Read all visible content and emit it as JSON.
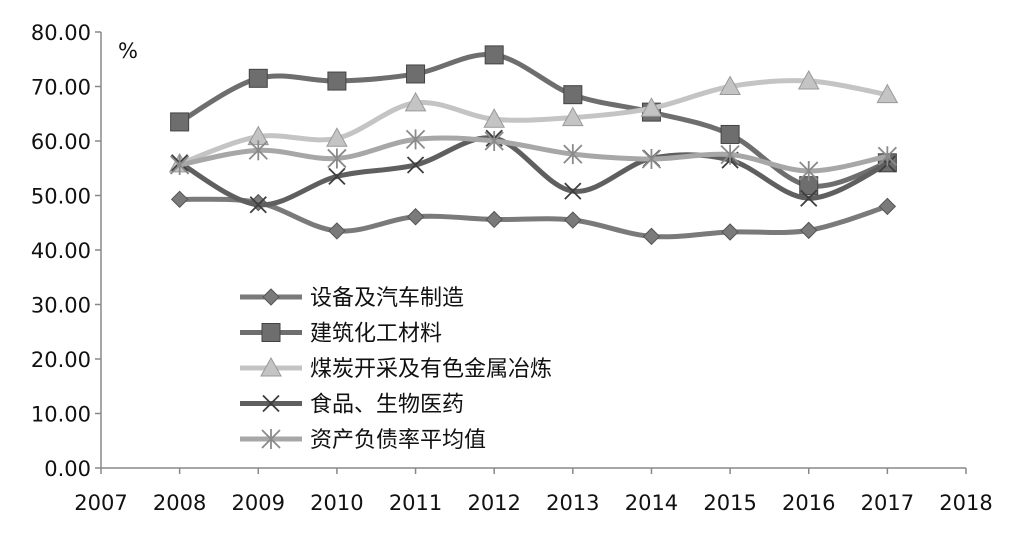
{
  "chart_data": {
    "type": "line",
    "title": "",
    "xlabel": "",
    "ylabel": "%",
    "xlim": [
      2007,
      2018
    ],
    "ylim": [
      0,
      80
    ],
    "x_ticks": [
      "2007",
      "2008",
      "2009",
      "2010",
      "2011",
      "2012",
      "2013",
      "2014",
      "2015",
      "2016",
      "2017",
      "2018"
    ],
    "y_ticks": [
      "0.00",
      "10.00",
      "20.00",
      "30.00",
      "40.00",
      "50.00",
      "60.00",
      "70.00",
      "80.00"
    ],
    "grid": false,
    "legend_position": "lower-left",
    "x": [
      2008,
      2009,
      2010,
      2011,
      2012,
      2013,
      2014,
      2015,
      2016,
      2017
    ],
    "series": [
      {
        "name": "设备及汽车制造",
        "marker": "diamond",
        "color": "#7a7a7a",
        "values": [
          49.3,
          48.7,
          43.5,
          46.1,
          45.6,
          45.5,
          42.5,
          43.3,
          43.6,
          48.0
        ]
      },
      {
        "name": "建筑化工材料",
        "marker": "square",
        "color": "#6e6e6e",
        "values": [
          63.5,
          71.5,
          71.0,
          72.3,
          75.8,
          68.5,
          65.3,
          61.2,
          51.8,
          56.0
        ]
      },
      {
        "name": "煤炭开采及有色金属冶炼",
        "marker": "triangle",
        "color": "#c4c4c4",
        "values": [
          55.8,
          60.8,
          60.5,
          67.0,
          64.0,
          64.3,
          66.0,
          70.0,
          71.0,
          68.5
        ]
      },
      {
        "name": "食品、生物医药",
        "marker": "x",
        "color": "#5f5f5f",
        "values": [
          56.0,
          48.3,
          53.5,
          55.6,
          60.5,
          50.8,
          56.8,
          56.5,
          49.5,
          55.8
        ]
      },
      {
        "name": "资产负债率平均值",
        "marker": "star",
        "color": "#a7a7a7",
        "values": [
          55.6,
          58.3,
          56.8,
          60.3,
          60.0,
          57.6,
          56.7,
          57.5,
          54.5,
          57.2
        ]
      }
    ]
  }
}
